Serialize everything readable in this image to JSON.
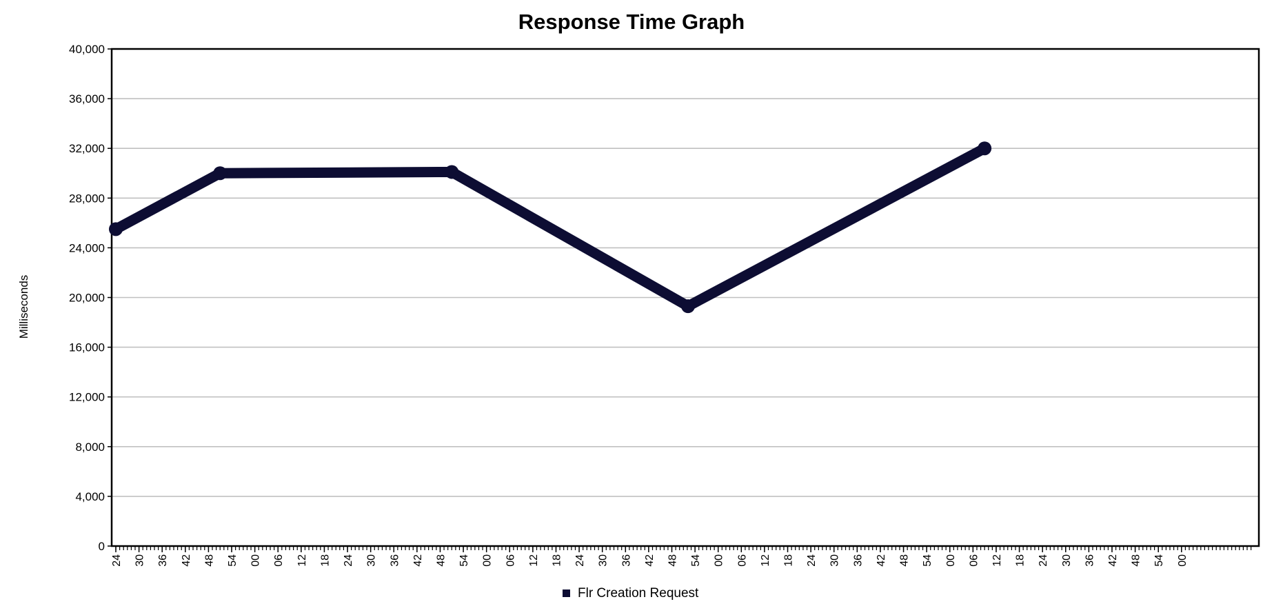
{
  "chart_data": {
    "type": "line",
    "title": "Response Time Graph",
    "xlabel": "",
    "ylabel": "Milliseconds",
    "ylim": [
      0,
      40000
    ],
    "y_ticks": [
      0,
      4000,
      8000,
      12000,
      16000,
      20000,
      24000,
      28000,
      32000,
      36000,
      40000
    ],
    "y_tick_labels": [
      "0",
      "4,000",
      "8,000",
      "12,000",
      "16,000",
      "20,000",
      "24,000",
      "28,000",
      "32,000",
      "36,000",
      "40,000"
    ],
    "x_tick_labels": [
      "24",
      "30",
      "36",
      "42",
      "48",
      "54",
      "00",
      "06",
      "12",
      "18",
      "24",
      "30",
      "36",
      "42",
      "48",
      "54",
      "00",
      "06",
      "12",
      "18",
      "24",
      "30",
      "36",
      "42",
      "48",
      "54",
      "00",
      "06",
      "12",
      "18",
      "24",
      "30",
      "36",
      "42",
      "48",
      "54",
      "00",
      "06",
      "12",
      "18",
      "24",
      "30",
      "36",
      "42",
      "48",
      "54",
      "00"
    ],
    "x_tick_index_range": [
      0,
      48
    ],
    "grid": true,
    "legend_position": "bottom",
    "series": [
      {
        "name": "Flr Creation Request",
        "color": "#0d0d33",
        "points": [
          {
            "x": 0,
            "y": 25500
          },
          {
            "x": 4.5,
            "y": 30000
          },
          {
            "x": 14.5,
            "y": 30100
          },
          {
            "x": 24.7,
            "y": 19300
          },
          {
            "x": 37.5,
            "y": 32000
          }
        ]
      }
    ]
  }
}
